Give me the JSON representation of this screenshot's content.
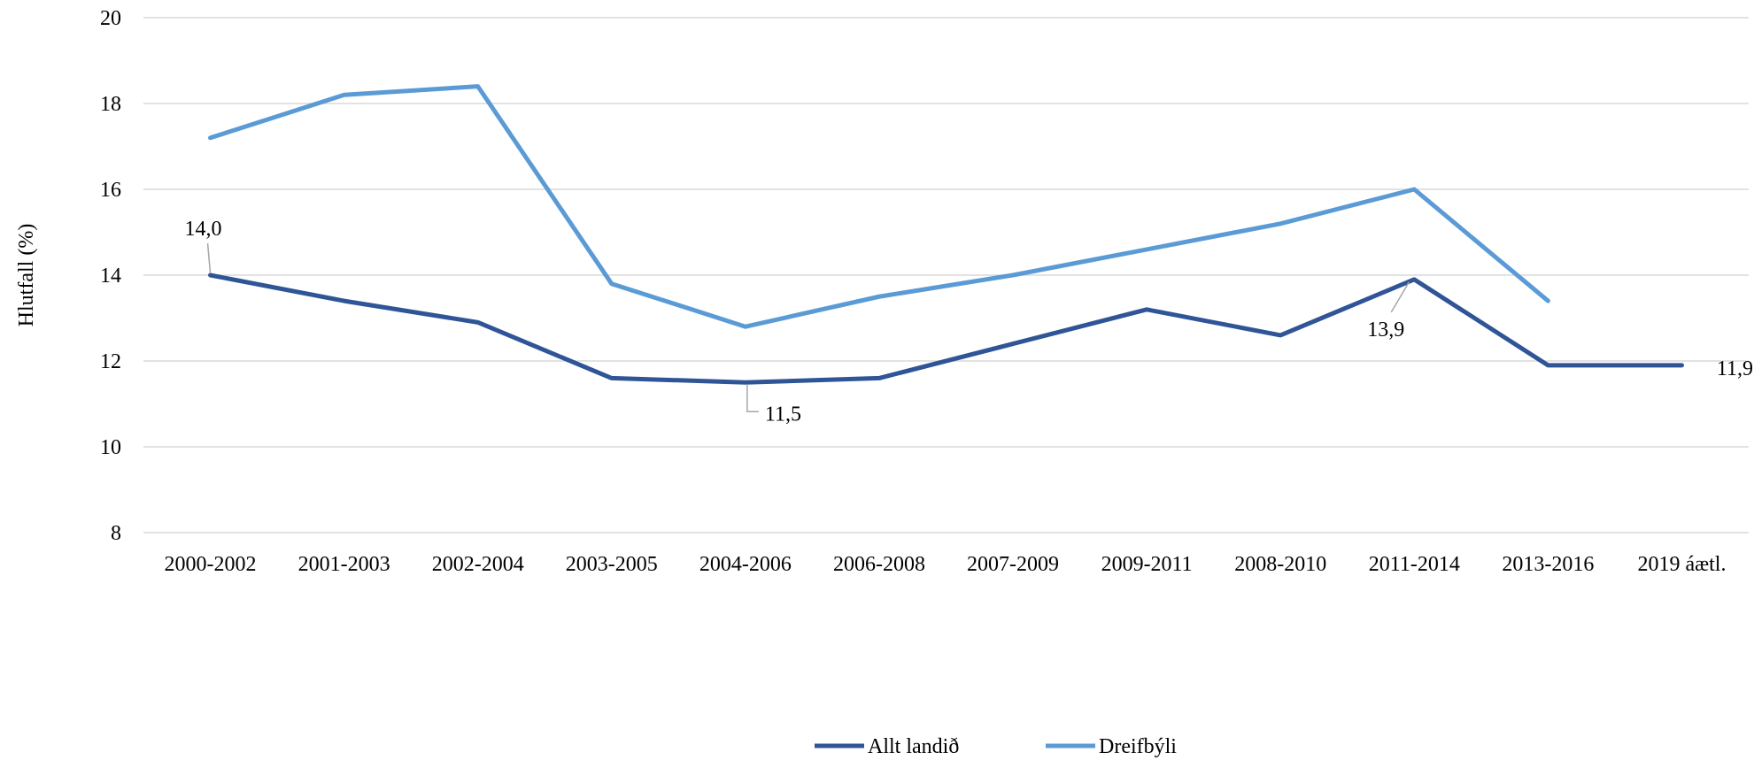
{
  "chart_data": {
    "type": "line",
    "title": "",
    "xlabel": "",
    "ylabel": "Hlutfall (%)",
    "ylim": [
      8,
      20
    ],
    "yticks": [
      8,
      10,
      12,
      14,
      16,
      18,
      20
    ],
    "grid": "horizontal",
    "legend_position": "bottom",
    "categories": [
      "2000-2002",
      "2001-2003",
      "2002-2004",
      "2003-2005",
      "2004-2006",
      "2006-2008",
      "2007-2009",
      "2009-2011",
      "2008-2010",
      "2011-2014",
      "2013-2016",
      "2019 áætl."
    ],
    "series": [
      {
        "name": "Allt landið",
        "color": "#2F5597",
        "values": [
          14.0,
          13.4,
          12.9,
          11.6,
          11.5,
          11.6,
          12.4,
          13.2,
          12.6,
          13.9,
          11.9,
          11.9
        ]
      },
      {
        "name": "Dreifbýli",
        "color": "#5B9BD5",
        "values": [
          17.2,
          18.2,
          18.4,
          13.8,
          12.8,
          13.5,
          14.0,
          14.6,
          15.2,
          16.0,
          13.4,
          null
        ]
      }
    ],
    "annotations": [
      {
        "series": 0,
        "index": 0,
        "text": "14,0",
        "placement": "above"
      },
      {
        "series": 0,
        "index": 4,
        "text": "11,5",
        "placement": "below-right"
      },
      {
        "series": 0,
        "index": 9,
        "text": "13,9",
        "placement": "below-left"
      },
      {
        "series": 0,
        "index": 11,
        "text": "11,9",
        "placement": "right"
      }
    ],
    "gridline_color": "#D9D9D9",
    "leader_line_color": "#A6A6A6"
  }
}
